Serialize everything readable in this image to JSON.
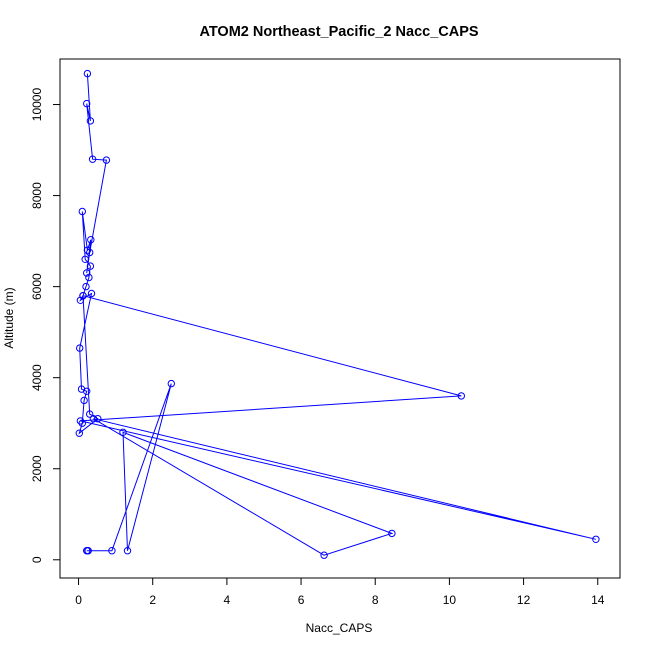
{
  "chart_data": {
    "type": "line",
    "title": "ATOM2 Northeast_Pacific_2 Nacc_CAPS",
    "xlabel": "Nacc_CAPS",
    "ylabel": "Altitude (m)",
    "xlim": [
      -0.5,
      14.6
    ],
    "ylim": [
      -400,
      11000
    ],
    "xticks": [
      0,
      2,
      4,
      6,
      8,
      10,
      12,
      14
    ],
    "xtick_labels": [
      "0",
      "2",
      "4",
      "6",
      "8",
      "10",
      "12",
      "14"
    ],
    "yticks": [
      0,
      2000,
      4000,
      6000,
      8000,
      10000
    ],
    "ytick_labels": [
      "0",
      "2000",
      "4000",
      "6000",
      "8000",
      "10000"
    ],
    "grid": false,
    "legend": "none",
    "series_color": "#0000ff",
    "markers": "open-circle",
    "series": [
      {
        "x": [
          0.25,
          0.22,
          0.26,
          0.9,
          2.5,
          1.32,
          1.2,
          8.45,
          6.62,
          0.4,
          13.95,
          0.05,
          10.32,
          0.12,
          0.3,
          0.52,
          0.02,
          0.1,
          0.15,
          0.22,
          0.08,
          0.03,
          0.35,
          0.05,
          0.12,
          0.2,
          0.28,
          0.32,
          0.18,
          0.1,
          0.24,
          0.33,
          0.22,
          0.3,
          0.75,
          0.38,
          0.22,
          0.32,
          0.24
        ],
        "y": [
          200,
          200,
          200,
          200,
          3870,
          200,
          2800,
          580,
          100,
          3100,
          450,
          3050,
          3600,
          5800,
          3200,
          3100,
          2780,
          3000,
          3500,
          3700,
          3750,
          4650,
          5850,
          5700,
          5800,
          6000,
          6200,
          6450,
          6600,
          7650,
          6800,
          7030,
          6300,
          6750,
          8780,
          8800,
          10020,
          9640,
          10680
        ]
      }
    ]
  }
}
